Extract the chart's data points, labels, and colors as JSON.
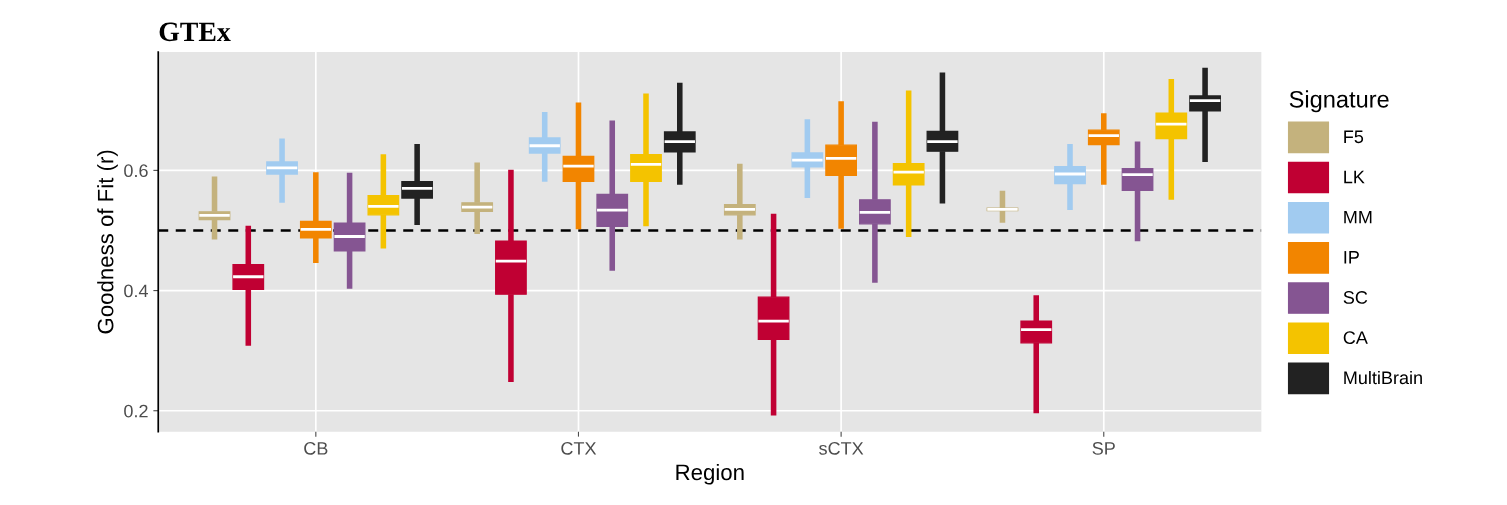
{
  "chart_data": {
    "type": "box",
    "title": "GTEx",
    "xlabel": "Region",
    "ylabel": "Goodness of Fit (r)",
    "legend_title": "Signature",
    "categories": [
      "CB",
      "CTX",
      "sCTX",
      "SP"
    ],
    "ylim": [
      0.165,
      0.797
    ],
    "yticks": [
      0.2,
      0.4,
      0.6
    ],
    "grid": true,
    "legend": "right",
    "ref_lines": [
      {
        "axis": "y",
        "value": 0.5,
        "color": "#000000",
        "line_style": "dashed"
      }
    ],
    "series": [
      {
        "name": "F5",
        "color": "#c4b27d",
        "boxes": [
          {
            "low": 0.485,
            "q1": 0.518,
            "median": 0.525,
            "q3": 0.531,
            "high": 0.59
          },
          {
            "low": 0.494,
            "q1": 0.532,
            "median": 0.539,
            "q3": 0.546,
            "high": 0.613
          },
          {
            "low": 0.485,
            "q1": 0.526,
            "median": 0.535,
            "q3": 0.543,
            "high": 0.611
          },
          {
            "low": 0.513,
            "q1": 0.533,
            "median": 0.535,
            "q3": 0.537,
            "high": 0.566
          }
        ]
      },
      {
        "name": "LK",
        "color": "#c00033",
        "boxes": [
          {
            "low": 0.308,
            "q1": 0.402,
            "median": 0.423,
            "q3": 0.443,
            "high": 0.508
          },
          {
            "low": 0.248,
            "q1": 0.394,
            "median": 0.449,
            "q3": 0.482,
            "high": 0.601
          },
          {
            "low": 0.192,
            "q1": 0.319,
            "median": 0.349,
            "q3": 0.389,
            "high": 0.528
          },
          {
            "low": 0.196,
            "q1": 0.313,
            "median": 0.335,
            "q3": 0.349,
            "high": 0.392
          }
        ]
      },
      {
        "name": "MM",
        "color": "#a1cbf0",
        "boxes": [
          {
            "low": 0.546,
            "q1": 0.594,
            "median": 0.604,
            "q3": 0.614,
            "high": 0.653
          },
          {
            "low": 0.581,
            "q1": 0.629,
            "median": 0.641,
            "q3": 0.654,
            "high": 0.697
          },
          {
            "low": 0.554,
            "q1": 0.606,
            "median": 0.617,
            "q3": 0.629,
            "high": 0.685
          },
          {
            "low": 0.534,
            "q1": 0.578,
            "median": 0.594,
            "q3": 0.606,
            "high": 0.644
          }
        ]
      },
      {
        "name": "IP",
        "color": "#f28500",
        "boxes": [
          {
            "low": 0.446,
            "q1": 0.488,
            "median": 0.502,
            "q3": 0.515,
            "high": 0.597
          },
          {
            "low": 0.502,
            "q1": 0.582,
            "median": 0.607,
            "q3": 0.623,
            "high": 0.713
          },
          {
            "low": 0.503,
            "q1": 0.592,
            "median": 0.62,
            "q3": 0.642,
            "high": 0.715
          },
          {
            "low": 0.576,
            "q1": 0.643,
            "median": 0.658,
            "q3": 0.667,
            "high": 0.695
          }
        ]
      },
      {
        "name": "SC",
        "color": "#855592",
        "boxes": [
          {
            "low": 0.403,
            "q1": 0.466,
            "median": 0.49,
            "q3": 0.512,
            "high": 0.596
          },
          {
            "low": 0.433,
            "q1": 0.507,
            "median": 0.534,
            "q3": 0.56,
            "high": 0.683
          },
          {
            "low": 0.413,
            "q1": 0.511,
            "median": 0.53,
            "q3": 0.551,
            "high": 0.681
          },
          {
            "low": 0.482,
            "q1": 0.567,
            "median": 0.593,
            "q3": 0.603,
            "high": 0.648
          }
        ]
      },
      {
        "name": "CA",
        "color": "#f4c300",
        "boxes": [
          {
            "low": 0.47,
            "q1": 0.526,
            "median": 0.54,
            "q3": 0.558,
            "high": 0.627
          },
          {
            "low": 0.507,
            "q1": 0.582,
            "median": 0.61,
            "q3": 0.626,
            "high": 0.728
          },
          {
            "low": 0.489,
            "q1": 0.576,
            "median": 0.597,
            "q3": 0.611,
            "high": 0.733
          },
          {
            "low": 0.551,
            "q1": 0.653,
            "median": 0.677,
            "q3": 0.695,
            "high": 0.752
          }
        ]
      },
      {
        "name": "MultiBrain",
        "color": "#222222",
        "boxes": [
          {
            "low": 0.509,
            "q1": 0.554,
            "median": 0.57,
            "q3": 0.581,
            "high": 0.644
          },
          {
            "low": 0.576,
            "q1": 0.631,
            "median": 0.648,
            "q3": 0.664,
            "high": 0.746
          },
          {
            "low": 0.545,
            "q1": 0.632,
            "median": 0.648,
            "q3": 0.665,
            "high": 0.763
          },
          {
            "low": 0.614,
            "q1": 0.699,
            "median": 0.716,
            "q3": 0.724,
            "high": 0.771
          }
        ]
      }
    ]
  }
}
